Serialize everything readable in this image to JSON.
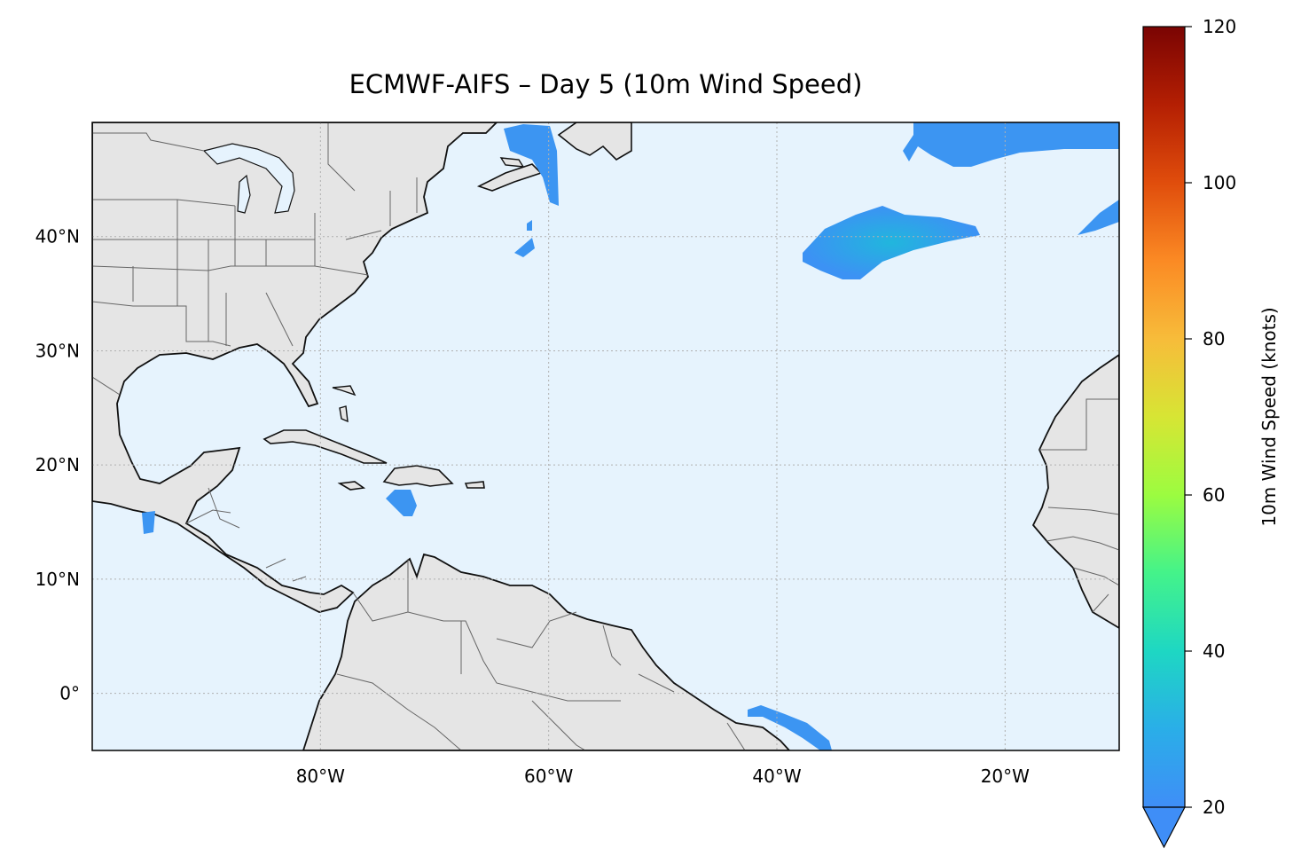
{
  "title": "ECMWF-AIFS – Day 5 (10m Wind Speed)",
  "map": {
    "lon_range": [
      -100,
      -10
    ],
    "lat_range": [
      -5,
      50
    ],
    "lon_ticks": [
      {
        "value": -80,
        "label": "80°W"
      },
      {
        "value": -60,
        "label": "60°W"
      },
      {
        "value": -40,
        "label": "40°W"
      },
      {
        "value": -20,
        "label": "20°W"
      }
    ],
    "lat_ticks": [
      {
        "value": 0,
        "label": "0°"
      },
      {
        "value": 10,
        "label": "10°N"
      },
      {
        "value": 20,
        "label": "20°N"
      },
      {
        "value": 30,
        "label": "30°N"
      },
      {
        "value": 40,
        "label": "40°N"
      }
    ],
    "gridlines": "dotted",
    "ocean_color": "#e6f3fd",
    "land_color": "#e5e5e5",
    "coastline_color": "#111111",
    "border_color": "#666666"
  },
  "colorbar": {
    "label": "10m Wind Speed (knots)",
    "range": [
      20,
      120
    ],
    "extend": "min",
    "colormap": "turbo",
    "ticks": [
      {
        "value": 20,
        "label": "20"
      },
      {
        "value": 40,
        "label": "40"
      },
      {
        "value": 60,
        "label": "60"
      },
      {
        "value": 80,
        "label": "80"
      },
      {
        "value": 100,
        "label": "100"
      },
      {
        "value": 120,
        "label": "120"
      }
    ]
  }
}
